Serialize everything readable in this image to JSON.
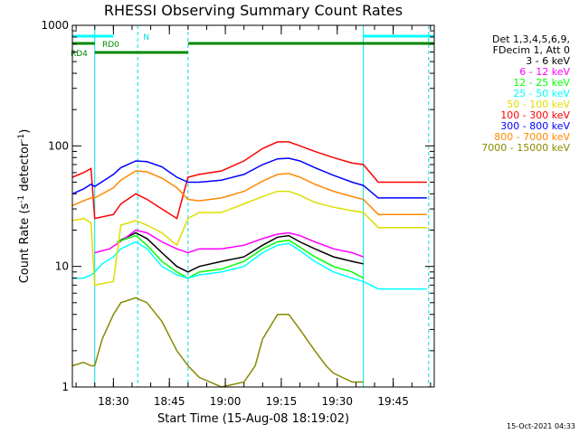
{
  "chart_data": {
    "type": "line",
    "title": "RHESSI Observing Summary Count Rates",
    "xlabel": "Start Time (15-Aug-08 18:19:02)",
    "ylabel_parts": [
      "Count Rate (s",
      "-1",
      " detector",
      "-1",
      ")"
    ],
    "yscale": "log",
    "ylim": [
      1,
      1000
    ],
    "y_ticks": [
      1,
      10,
      100,
      1000
    ],
    "y_tick_labels": [
      "1",
      "10",
      "100",
      "1000"
    ],
    "xlim": [
      0,
      97
    ],
    "x_tick_labels": [
      "18:30",
      "18:45",
      "19:00",
      "19:15",
      "19:30",
      "19:45"
    ],
    "x_ticks": [
      11,
      26,
      41,
      56,
      71,
      86
    ],
    "legend_header": [
      "Det 1,3,4,5,6,9,",
      "FDecim 1, Att 0"
    ],
    "timestamp": "15-Oct-2021 04:33",
    "segment_labels": [
      "RD0",
      "RD4",
      "N"
    ],
    "night_periods": [
      [
        0,
        6
      ],
      [
        78,
        97
      ]
    ],
    "saa_periods": [
      [
        0,
        6
      ],
      [
        78,
        97
      ]
    ],
    "markers_x": [
      6,
      17.5,
      31,
      78,
      95.5
    ],
    "series": [
      {
        "name": "3 - 6 keV",
        "color": "#000000",
        "points": [
          [
            12,
            16
          ],
          [
            17,
            19
          ],
          [
            20,
            17
          ],
          [
            24,
            13
          ],
          [
            28,
            10
          ],
          [
            31,
            9
          ],
          [
            34,
            10
          ],
          [
            40,
            11
          ],
          [
            46,
            12
          ],
          [
            51,
            15
          ],
          [
            55,
            17.5
          ],
          [
            58,
            18
          ],
          [
            61,
            16
          ],
          [
            65,
            14
          ],
          [
            70,
            12
          ],
          [
            75,
            11
          ],
          [
            78,
            10.5
          ]
        ]
      },
      {
        "name": "6 - 12 keV",
        "color": "#ff00ff",
        "points": [
          [
            6,
            13
          ],
          [
            10,
            14
          ],
          [
            14,
            17
          ],
          [
            17,
            20
          ],
          [
            20,
            19
          ],
          [
            24,
            16
          ],
          [
            28,
            14
          ],
          [
            31,
            13
          ],
          [
            34,
            14
          ],
          [
            40,
            14
          ],
          [
            46,
            15
          ],
          [
            51,
            17
          ],
          [
            55,
            18.5
          ],
          [
            58,
            19
          ],
          [
            61,
            18
          ],
          [
            65,
            16
          ],
          [
            70,
            14
          ],
          [
            75,
            13
          ],
          [
            78,
            12
          ]
        ]
      },
      {
        "name": "12 - 25 keV",
        "color": "#00ff00",
        "points": [
          [
            12,
            16
          ],
          [
            17,
            18
          ],
          [
            20,
            15
          ],
          [
            24,
            11
          ],
          [
            28,
            9
          ],
          [
            31,
            8
          ],
          [
            34,
            9
          ],
          [
            40,
            9.5
          ],
          [
            46,
            11
          ],
          [
            51,
            14
          ],
          [
            55,
            16
          ],
          [
            58,
            16.5
          ],
          [
            61,
            14.5
          ],
          [
            65,
            12
          ],
          [
            70,
            10
          ],
          [
            75,
            9
          ],
          [
            78,
            8
          ]
        ]
      },
      {
        "name": "25 - 50 keV",
        "color": "#00ffff",
        "points": [
          [
            0,
            8
          ],
          [
            3,
            8
          ],
          [
            5,
            8.5
          ],
          [
            6,
            9
          ],
          [
            8,
            10.5
          ],
          [
            11,
            12
          ],
          [
            13,
            14
          ],
          [
            17,
            16
          ],
          [
            20,
            14
          ],
          [
            24,
            10
          ],
          [
            28,
            8.5
          ],
          [
            31,
            8
          ],
          [
            34,
            8.5
          ],
          [
            40,
            9
          ],
          [
            46,
            10
          ],
          [
            51,
            13
          ],
          [
            55,
            15
          ],
          [
            58,
            15.5
          ],
          [
            61,
            13.5
          ],
          [
            65,
            11
          ],
          [
            70,
            9
          ],
          [
            75,
            8
          ],
          [
            78,
            7.5
          ],
          [
            82,
            6.5
          ],
          [
            86,
            6.5
          ],
          [
            90,
            6.5
          ],
          [
            95,
            6.5
          ]
        ]
      },
      {
        "name": "50 - 100 keV",
        "color": "#dddd00",
        "points": [
          [
            0,
            24
          ],
          [
            3,
            25
          ],
          [
            5,
            23
          ],
          [
            6,
            7
          ],
          [
            11,
            7.5
          ],
          [
            13,
            22
          ],
          [
            17,
            24
          ],
          [
            20,
            22
          ],
          [
            24,
            19
          ],
          [
            28,
            15
          ],
          [
            31,
            25
          ],
          [
            34,
            28
          ],
          [
            40,
            28
          ],
          [
            46,
            33
          ],
          [
            51,
            38
          ],
          [
            55,
            42
          ],
          [
            58,
            42
          ],
          [
            61,
            39
          ],
          [
            65,
            34
          ],
          [
            70,
            31
          ],
          [
            75,
            29
          ],
          [
            78,
            28
          ],
          [
            82,
            21
          ],
          [
            86,
            21
          ],
          [
            90,
            21
          ],
          [
            95,
            21
          ]
        ]
      },
      {
        "name": "100 - 300 keV",
        "color": "#ff0000",
        "points": [
          [
            0,
            55
          ],
          [
            3,
            60
          ],
          [
            5,
            65
          ],
          [
            6,
            25
          ],
          [
            11,
            27
          ],
          [
            13,
            33
          ],
          [
            17,
            40
          ],
          [
            20,
            36
          ],
          [
            24,
            30
          ],
          [
            28,
            25
          ],
          [
            31,
            55
          ],
          [
            34,
            58
          ],
          [
            40,
            62
          ],
          [
            46,
            75
          ],
          [
            51,
            95
          ],
          [
            55,
            108
          ],
          [
            58,
            108
          ],
          [
            61,
            100
          ],
          [
            65,
            90
          ],
          [
            70,
            80
          ],
          [
            75,
            72
          ],
          [
            78,
            70
          ],
          [
            82,
            50
          ],
          [
            86,
            50
          ],
          [
            90,
            50
          ],
          [
            95,
            50
          ]
        ]
      },
      {
        "name": "300 - 800 keV",
        "color": "#0000ff",
        "points": [
          [
            0,
            40
          ],
          [
            3,
            44
          ],
          [
            5,
            48
          ],
          [
            6,
            46
          ],
          [
            11,
            58
          ],
          [
            13,
            66
          ],
          [
            17,
            75
          ],
          [
            20,
            74
          ],
          [
            24,
            67
          ],
          [
            28,
            55
          ],
          [
            31,
            50
          ],
          [
            34,
            50
          ],
          [
            40,
            52
          ],
          [
            46,
            58
          ],
          [
            51,
            70
          ],
          [
            55,
            78
          ],
          [
            58,
            79
          ],
          [
            61,
            75
          ],
          [
            65,
            66
          ],
          [
            70,
            57
          ],
          [
            75,
            50
          ],
          [
            78,
            47
          ],
          [
            82,
            37
          ],
          [
            86,
            37
          ],
          [
            90,
            37
          ],
          [
            95,
            37
          ]
        ]
      },
      {
        "name": "800 - 7000 keV",
        "color": "#ff8800",
        "points": [
          [
            0,
            32
          ],
          [
            3,
            35
          ],
          [
            5,
            37
          ],
          [
            6,
            37
          ],
          [
            11,
            45
          ],
          [
            13,
            52
          ],
          [
            17,
            62
          ],
          [
            20,
            61
          ],
          [
            24,
            54
          ],
          [
            28,
            45
          ],
          [
            31,
            36
          ],
          [
            34,
            35
          ],
          [
            40,
            37
          ],
          [
            46,
            42
          ],
          [
            51,
            51
          ],
          [
            55,
            58
          ],
          [
            58,
            59
          ],
          [
            61,
            55
          ],
          [
            65,
            48
          ],
          [
            70,
            42
          ],
          [
            75,
            38
          ],
          [
            78,
            36
          ],
          [
            82,
            27
          ],
          [
            86,
            27
          ],
          [
            90,
            27
          ],
          [
            95,
            27
          ]
        ]
      },
      {
        "name": "7000 - 15000 keV",
        "color": "#888800",
        "points": [
          [
            0,
            1.5
          ],
          [
            3,
            1.6
          ],
          [
            5,
            1.5
          ],
          [
            6,
            1.5
          ],
          [
            8,
            2.5
          ],
          [
            11,
            4
          ],
          [
            13,
            5
          ],
          [
            17,
            5.5
          ],
          [
            20,
            5
          ],
          [
            24,
            3.5
          ],
          [
            28,
            2
          ],
          [
            31,
            1.5
          ],
          [
            34,
            1.2
          ],
          [
            40,
            1
          ],
          [
            46,
            1.1
          ],
          [
            49,
            1.5
          ],
          [
            51,
            2.5
          ],
          [
            55,
            4
          ],
          [
            58,
            4
          ],
          [
            61,
            3
          ],
          [
            65,
            2
          ],
          [
            68,
            1.5
          ],
          [
            70,
            1.3
          ],
          [
            75,
            1.1
          ],
          [
            78,
            1.1
          ]
        ]
      }
    ]
  }
}
